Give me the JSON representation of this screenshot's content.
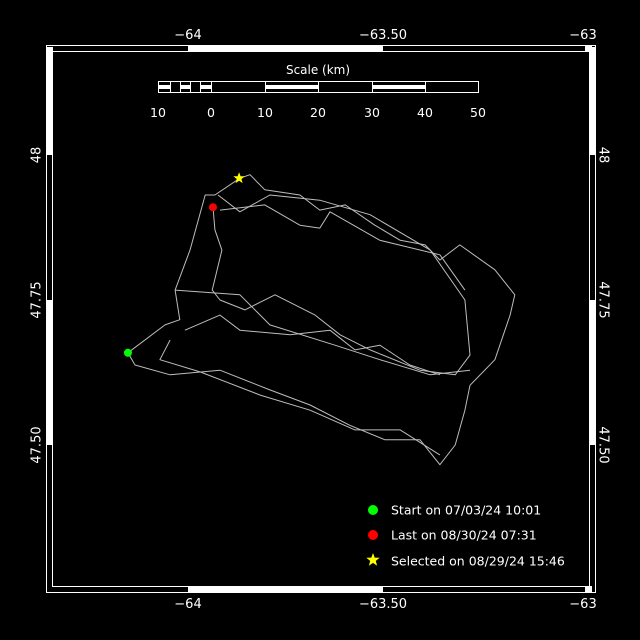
{
  "map": {
    "lon_axis": {
      "ticks": [
        -64,
        -63.5,
        -63
      ],
      "labels": [
        "−64",
        "−63.50",
        "−63"
      ]
    },
    "lat_axis": {
      "ticks": [
        48,
        47.75,
        47.5
      ],
      "labels": [
        "48",
        "47.75",
        "47.50"
      ]
    },
    "background_color": "#000000",
    "track_color": "#bdbdbd",
    "track": [
      [
        [
          -64.154,
          47.659
        ],
        [
          -64.059,
          47.707
        ],
        [
          -64.021,
          47.716
        ],
        [
          -64.033,
          47.767
        ],
        [
          -63.995,
          47.836
        ],
        [
          -63.956,
          47.931
        ],
        [
          -63.931,
          47.931
        ],
        [
          -63.867,
          47.96
        ],
        [
          -63.841,
          47.966
        ],
        [
          -63.803,
          47.94
        ],
        [
          -63.713,
          47.931
        ],
        [
          -63.662,
          47.905
        ],
        [
          -63.597,
          47.914
        ],
        [
          -63.521,
          47.879
        ],
        [
          -63.456,
          47.853
        ],
        [
          -63.392,
          47.845
        ],
        [
          -63.354,
          47.819
        ],
        [
          -63.303,
          47.845
        ],
        [
          -63.213,
          47.802
        ],
        [
          -63.162,
          47.759
        ],
        [
          -63.174,
          47.724
        ],
        [
          -63.213,
          47.647
        ],
        [
          -63.277,
          47.603
        ],
        [
          -63.29,
          47.56
        ],
        [
          -63.315,
          47.5
        ],
        [
          -63.354,
          47.466
        ],
        [
          -63.405,
          47.509
        ],
        [
          -63.495,
          47.509
        ],
        [
          -63.585,
          47.534
        ],
        [
          -63.687,
          47.569
        ],
        [
          -63.79,
          47.595
        ],
        [
          -63.918,
          47.629
        ],
        [
          -64.046,
          47.621
        ],
        [
          -64.136,
          47.638
        ],
        [
          -64.154,
          47.659
        ]
      ],
      [
        [
          -63.936,
          47.91
        ],
        [
          -63.931,
          47.871
        ],
        [
          -63.913,
          47.836
        ],
        [
          -63.938,
          47.767
        ],
        [
          -63.918,
          47.75
        ],
        [
          -63.854,
          47.733
        ],
        [
          -63.777,
          47.759
        ],
        [
          -63.674,
          47.724
        ],
        [
          -63.61,
          47.69
        ],
        [
          -63.533,
          47.664
        ],
        [
          -63.405,
          47.629
        ],
        [
          -63.315,
          47.621
        ],
        [
          -63.277,
          47.655
        ],
        [
          -63.29,
          47.75
        ],
        [
          -63.379,
          47.836
        ],
        [
          -63.533,
          47.897
        ],
        [
          -63.662,
          47.922
        ],
        [
          -63.79,
          47.931
        ],
        [
          -63.867,
          47.902
        ],
        [
          -63.923,
          47.931
        ]
      ],
      [
        [
          -64.033,
          47.767
        ],
        [
          -63.867,
          47.759
        ],
        [
          -63.79,
          47.707
        ],
        [
          -63.623,
          47.672
        ],
        [
          -63.508,
          47.647
        ],
        [
          -63.379,
          47.621
        ],
        [
          -63.277,
          47.629
        ]
      ],
      [
        [
          -64.008,
          47.698
        ],
        [
          -63.918,
          47.724
        ],
        [
          -63.867,
          47.698
        ],
        [
          -63.738,
          47.69
        ],
        [
          -63.636,
          47.698
        ],
        [
          -63.572,
          47.664
        ],
        [
          -63.508,
          47.672
        ],
        [
          -63.431,
          47.638
        ],
        [
          -63.354,
          47.621
        ]
      ],
      [
        [
          -64.046,
          47.681
        ],
        [
          -64.072,
          47.647
        ],
        [
          -63.969,
          47.626
        ],
        [
          -63.815,
          47.586
        ],
        [
          -63.687,
          47.56
        ],
        [
          -63.572,
          47.526
        ],
        [
          -63.456,
          47.526
        ],
        [
          -63.354,
          47.483
        ]
      ],
      [
        [
          -63.918,
          47.905
        ],
        [
          -63.803,
          47.914
        ],
        [
          -63.713,
          47.879
        ],
        [
          -63.662,
          47.874
        ],
        [
          -63.636,
          47.902
        ],
        [
          -63.508,
          47.853
        ],
        [
          -63.354,
          47.828
        ],
        [
          -63.29,
          47.767
        ]
      ]
    ],
    "markers": {
      "start": {
        "lon": -64.154,
        "lat": 47.659,
        "color": "#00ff00",
        "icon": "circle"
      },
      "last": {
        "lon": -63.936,
        "lat": 47.91,
        "color": "#ff0000",
        "icon": "circle"
      },
      "selected": {
        "lon": -63.869,
        "lat": 47.96,
        "color": "#ffff00",
        "icon": "star"
      }
    }
  },
  "scale": {
    "title": "Scale (km)",
    "labels": [
      "10",
      "0",
      "10",
      "20",
      "30",
      "40",
      "50"
    ]
  },
  "legend": {
    "start": "Start on 07/03/24 10:01",
    "last": "Last on 08/30/24 07:31",
    "selected": "Selected on 08/29/24 15:46"
  }
}
